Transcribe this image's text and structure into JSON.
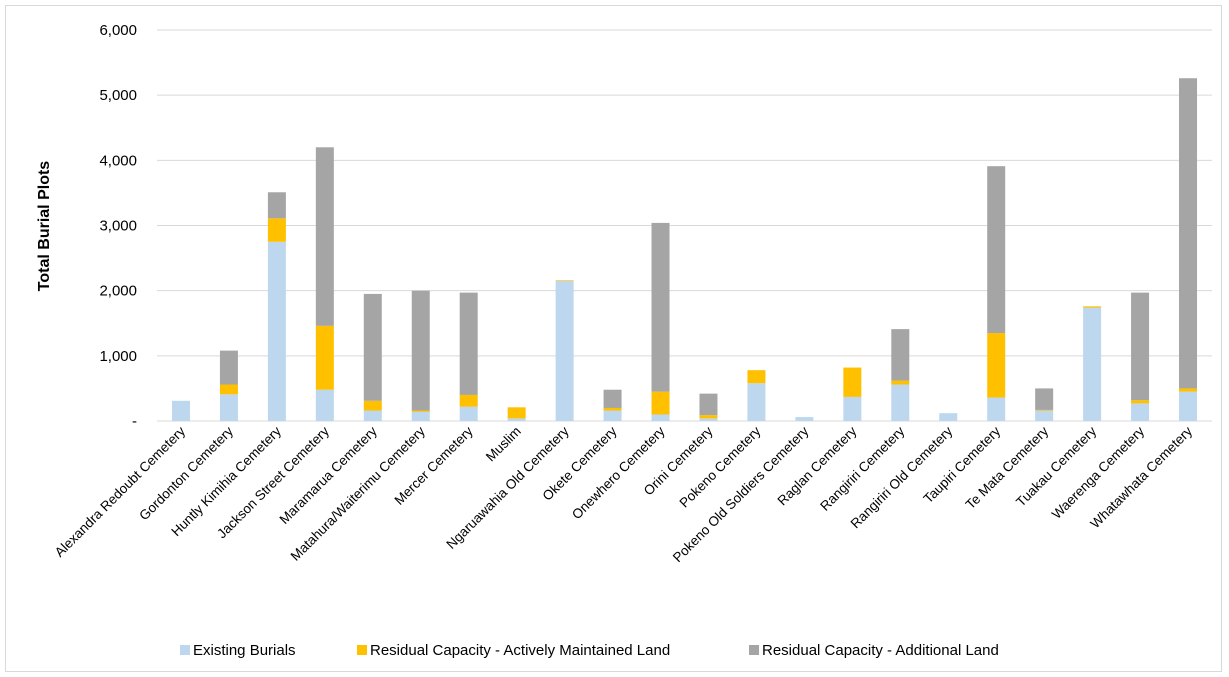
{
  "chart_data": {
    "type": "bar",
    "stacked": true,
    "title": "",
    "xlabel": "",
    "ylabel": "Total Burial Plots",
    "ylim": [
      0,
      6000
    ],
    "yticks": [
      {
        "value": 0,
        "label": "-"
      },
      {
        "value": 1000,
        "label": "1,000"
      },
      {
        "value": 2000,
        "label": "2,000"
      },
      {
        "value": 3000,
        "label": "3,000"
      },
      {
        "value": 4000,
        "label": "4,000"
      },
      {
        "value": 5000,
        "label": "5,000"
      },
      {
        "value": 6000,
        "label": "6,000"
      }
    ],
    "grid": true,
    "legend_position": "bottom",
    "categories": [
      "Alexandra Redoubt Cemetery",
      "Gordonton Cemetery",
      "Huntly Kimihia Cemetery",
      "Jackson Street Cemetery",
      "Maramarua Cemetery",
      "Matahura/Waiterimu Cemetery",
      "Mercer Cemetery",
      "Muslim",
      "Ngaruawahia Old Cemetery",
      "Okete Cemetery",
      "Onewhero Cemetery",
      "Orini Cemetery",
      "Pokeno Cemetery",
      "Pokeno Old Soldiers Cemetery",
      "Raglan Cemetery",
      "Rangiriri Cemetery",
      "Rangiriri Old Cemetery",
      "Taupiri Cemetery",
      "Te Mata Cemetery",
      "Tuakau Cemetery",
      "Waerenga Cemetery",
      "Whatawhata Cemetery"
    ],
    "series": [
      {
        "name": "Existing Burials",
        "color": "#bdd7ee",
        "values": [
          310,
          410,
          2750,
          480,
          160,
          140,
          220,
          40,
          2150,
          160,
          100,
          40,
          580,
          60,
          370,
          560,
          120,
          360,
          160,
          1740,
          270,
          450
        ]
      },
      {
        "name": "Residual Capacity - Actively Maintained Land",
        "color": "#ffc000",
        "values": [
          0,
          150,
          360,
          980,
          150,
          20,
          180,
          170,
          10,
          40,
          350,
          50,
          200,
          0,
          450,
          60,
          0,
          990,
          10,
          20,
          50,
          50
        ]
      },
      {
        "name": "Residual Capacity - Additional Land",
        "color": "#a5a5a5",
        "values": [
          0,
          520,
          400,
          2740,
          1640,
          1840,
          1570,
          0,
          0,
          280,
          2590,
          330,
          0,
          0,
          0,
          790,
          0,
          2560,
          330,
          0,
          1650,
          4760
        ]
      }
    ]
  }
}
